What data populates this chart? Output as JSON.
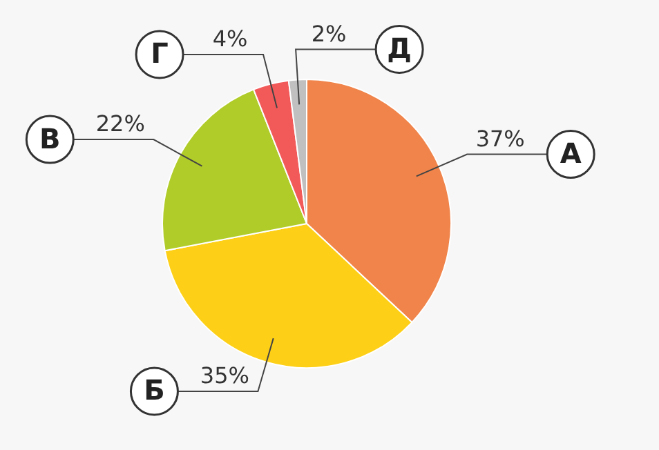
{
  "chart_data": {
    "type": "pie",
    "categories": [
      "А",
      "Б",
      "В",
      "Г",
      "Д"
    ],
    "values": [
      37,
      35,
      22,
      4,
      2
    ],
    "colors": [
      "#f0844a",
      "#fdd017",
      "#b0cc29",
      "#f25a5a",
      "#c0c0c0"
    ],
    "value_labels": [
      "37%",
      "35%",
      "22%",
      "4%",
      "2%"
    ],
    "legend": false
  }
}
